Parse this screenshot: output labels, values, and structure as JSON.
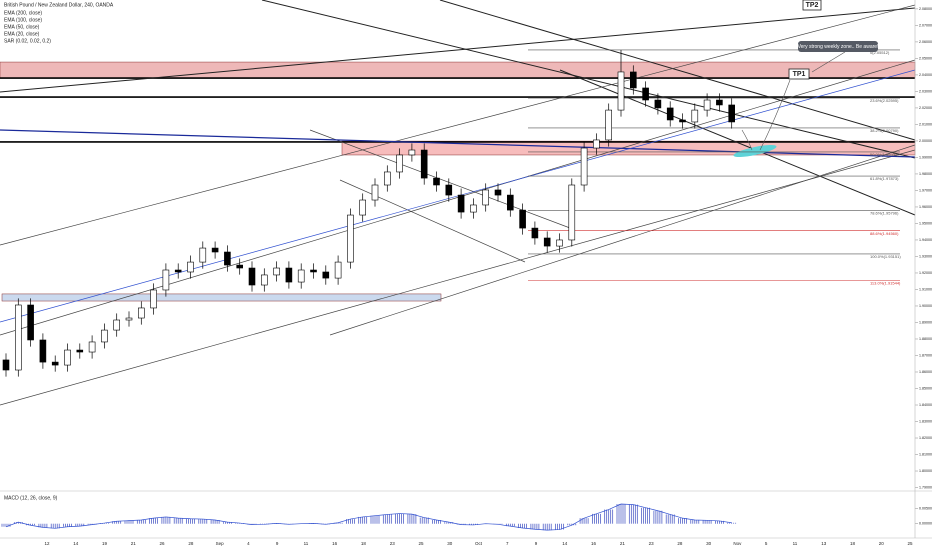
{
  "chart_data": {
    "type": "candlestick",
    "title": "British Pound / New Zealand Dollar, 240, OANDA",
    "indicators": [
      "EMA (200, close)",
      "EMA (100, close)",
      "EMA (50, close)",
      "EMA (20, close)",
      "SAR (0.02, 0.02, 0.2)"
    ],
    "categories": [
      "12",
      "14",
      "19",
      "21",
      "26",
      "28",
      "Sep",
      "4",
      "9",
      "11",
      "16",
      "18",
      "23",
      "25",
      "30",
      "Oct",
      "7",
      "9",
      "14",
      "16",
      "21",
      "23",
      "28",
      "30",
      "Nov",
      "5",
      "11",
      "13",
      "18",
      "20",
      "25"
    ],
    "ohlc": [
      [
        1.8673,
        1.8713,
        1.8572,
        1.8612
      ],
      [
        1.8612,
        1.9046,
        1.8572,
        1.9006
      ],
      [
        1.9006,
        1.9046,
        1.8754,
        1.8794
      ],
      [
        1.8794,
        1.8834,
        1.862,
        1.866
      ],
      [
        1.866,
        1.87,
        1.8602,
        1.8642
      ],
      [
        1.8642,
        1.8773,
        1.8602,
        1.8733
      ],
      [
        1.8733,
        1.8773,
        1.8681,
        1.8721
      ],
      [
        1.8721,
        1.8822,
        1.8681,
        1.8782
      ],
      [
        1.8782,
        1.8894,
        1.8742,
        1.8854
      ],
      [
        1.8854,
        1.8955,
        1.8814,
        1.8915
      ],
      [
        1.8915,
        1.8967,
        1.8875,
        1.8927
      ],
      [
        1.8927,
        1.9028,
        1.8887,
        1.8988
      ],
      [
        1.8988,
        1.9137,
        1.8948,
        1.9097
      ],
      [
        1.9097,
        1.9258,
        1.9057,
        1.9218
      ],
      [
        1.9218,
        1.9258,
        1.9166,
        1.9206
      ],
      [
        1.9206,
        1.9306,
        1.9166,
        1.9266
      ],
      [
        1.9266,
        1.9391,
        1.9226,
        1.9351
      ],
      [
        1.9351,
        1.9391,
        1.9287,
        1.9327
      ],
      [
        1.9327,
        1.9367,
        1.9208,
        1.9248
      ],
      [
        1.9248,
        1.9288,
        1.919,
        1.923
      ],
      [
        1.923,
        1.927,
        1.9087,
        1.9127
      ],
      [
        1.9127,
        1.9228,
        1.9087,
        1.9188
      ],
      [
        1.9188,
        1.927,
        1.9148,
        1.923
      ],
      [
        1.923,
        1.927,
        1.9105,
        1.9145
      ],
      [
        1.9145,
        1.9258,
        1.9105,
        1.9218
      ],
      [
        1.9218,
        1.9258,
        1.9166,
        1.9206
      ],
      [
        1.9206,
        1.9246,
        1.9129,
        1.9169
      ],
      [
        1.9169,
        1.9306,
        1.9129,
        1.9266
      ],
      [
        1.9266,
        1.9591,
        1.9226,
        1.9551
      ],
      [
        1.9551,
        1.9682,
        1.9511,
        1.9642
      ],
      [
        1.9642,
        1.9773,
        1.9602,
        1.9733
      ],
      [
        1.9733,
        1.9852,
        1.9693,
        1.9812
      ],
      [
        1.9812,
        1.9955,
        1.9772,
        1.9915
      ],
      [
        1.9915,
        1.9985,
        1.9875,
        1.9945
      ],
      [
        1.9945,
        1.9985,
        1.9735,
        1.9775
      ],
      [
        1.9775,
        1.9815,
        1.9693,
        1.9733
      ],
      [
        1.9733,
        1.9773,
        1.9632,
        1.9672
      ],
      [
        1.9672,
        1.9712,
        1.9529,
        1.9569
      ],
      [
        1.9569,
        1.9652,
        1.9529,
        1.9612
      ],
      [
        1.9612,
        1.9743,
        1.9572,
        1.9703
      ],
      [
        1.9703,
        1.9743,
        1.9632,
        1.9672
      ],
      [
        1.9672,
        1.9712,
        1.9541,
        1.9581
      ],
      [
        1.9581,
        1.9621,
        1.9432,
        1.9472
      ],
      [
        1.9472,
        1.9512,
        1.9372,
        1.9412
      ],
      [
        1.9412,
        1.9452,
        1.9323,
        1.9363
      ],
      [
        1.9363,
        1.944,
        1.9323,
        1.94
      ],
      [
        1.94,
        1.9773,
        1.936,
        1.9733
      ],
      [
        1.9733,
        1.9997,
        1.9693,
        1.9957
      ],
      [
        1.9957,
        2.0046,
        1.9917,
        2.0006
      ],
      [
        2.0006,
        2.0227,
        1.9966,
        2.0187
      ],
      [
        2.0187,
        2.0551,
        2.0147,
        2.0418
      ],
      [
        2.0418,
        2.0458,
        2.0281,
        2.0321
      ],
      [
        2.0321,
        2.0361,
        2.0208,
        2.0248
      ],
      [
        2.0248,
        2.0288,
        2.016,
        2.02
      ],
      [
        2.02,
        2.024,
        2.0087,
        2.0127
      ],
      [
        2.0127,
        2.0167,
        2.0075,
        2.0115
      ],
      [
        2.0115,
        2.0227,
        2.0075,
        2.0187
      ],
      [
        2.0187,
        2.0288,
        2.0147,
        2.0248
      ],
      [
        2.0248,
        2.0288,
        2.0178,
        2.0218
      ],
      [
        2.0218,
        2.0258,
        2.0075,
        2.0115
      ]
    ],
    "up_color": "#ffffff",
    "down_color": "#000000",
    "ylim": [
      1.7885,
      2.0854
    ],
    "yticks": [
      {
        "value": 2.08,
        "label": "2.08000"
      },
      {
        "value": 2.07,
        "label": "2.07000"
      },
      {
        "value": 2.06,
        "label": "2.06000"
      },
      {
        "value": 2.05,
        "label": "2.05000"
      },
      {
        "value": 2.04,
        "label": "2.04000"
      },
      {
        "value": 2.03,
        "label": "2.03000"
      },
      {
        "value": 2.02,
        "label": "2.02000"
      },
      {
        "value": 2.01,
        "label": "2.01000"
      },
      {
        "value": 2.0,
        "label": "2.00000"
      },
      {
        "value": 1.99,
        "label": "1.99000"
      },
      {
        "value": 1.98,
        "label": "1.98000"
      },
      {
        "value": 1.97,
        "label": "1.97000"
      },
      {
        "value": 1.96,
        "label": "1.96000"
      },
      {
        "value": 1.95,
        "label": "1.95000"
      },
      {
        "value": 1.94,
        "label": "1.94000"
      },
      {
        "value": 1.93,
        "label": "1.93000"
      },
      {
        "value": 1.92,
        "label": "1.92000"
      },
      {
        "value": 1.91,
        "label": "1.91000"
      },
      {
        "value": 1.9,
        "label": "1.90000"
      },
      {
        "value": 1.89,
        "label": "1.89000"
      },
      {
        "value": 1.88,
        "label": "1.88000"
      },
      {
        "value": 1.87,
        "label": "1.87000"
      },
      {
        "value": 1.86,
        "label": "1.86000"
      },
      {
        "value": 1.85,
        "label": "1.85000"
      },
      {
        "value": 1.84,
        "label": "1.84000"
      },
      {
        "value": 1.83,
        "label": "1.83000"
      },
      {
        "value": 1.82,
        "label": "1.82000"
      },
      {
        "value": 1.81,
        "label": "1.81000"
      },
      {
        "value": 1.8,
        "label": "1.80000"
      },
      {
        "value": 1.79,
        "label": "1.79000"
      }
    ],
    "zones": [
      {
        "values": [
          2.0478,
          2.0381
        ],
        "color": "#e8a0a0"
      },
      {
        "values": [
          1.9999,
          1.9915
        ],
        "color": "#f4a6a6"
      },
      {
        "values": [
          1.9073,
          1.903
        ],
        "color": "#b8cce8"
      }
    ],
    "levels": [
      2.0381,
      2.0266,
      1.9994
    ],
    "fib": [
      {
        "value": 2.05512,
        "label": "0(2.05512)",
        "color": "#555555"
      },
      {
        "value": 2.02595,
        "label": "23.6%(2.02595)",
        "color": "#555555"
      },
      {
        "value": 2.0079,
        "label": "38.2%(2.00790)",
        "color": "#555555"
      },
      {
        "value": 1.99332,
        "label": "50.0%(1.99332)",
        "color": "#555555"
      },
      {
        "value": 1.97873,
        "label": "61.8%(1.97873)",
        "color": "#555555"
      },
      {
        "value": 1.95796,
        "label": "78.6%(1.95796)",
        "color": "#555555"
      },
      {
        "value": 1.9456,
        "label": "88.6%(1.94560)",
        "color": "#d03030"
      },
      {
        "value": 1.93151,
        "label": "100.0%(1.93151)",
        "color": "#555555"
      },
      {
        "value": 1.91544,
        "label": "113.0%(1.91544)",
        "color": "#d03030"
      }
    ],
    "annotations": [
      "TP2",
      "TP1",
      "Very strong weekly zone.. Be aware!"
    ],
    "macd": {
      "title": "MACD (12, 26, close, 9)",
      "color": "#3b4cc0",
      "values": [
        -0.001,
        0.0005,
        -0.0005,
        -0.0012,
        -0.0015,
        -0.001,
        -0.0008,
        -0.0003,
        0.0002,
        0.0008,
        0.001,
        0.0012,
        0.0018,
        0.0022,
        0.0018,
        0.0016,
        0.0015,
        0.0012,
        0.0005,
        0.0002,
        -0.0003,
        -0.0002,
        0.0001,
        -0.0002,
        0,
        0.0001,
        -0.0002,
        0.0003,
        0.0015,
        0.0022,
        0.0026,
        0.003,
        0.0033,
        0.0031,
        0.002,
        0.0012,
        0.0005,
        -0.0003,
        -0.0004,
        0,
        -0.0002,
        -0.0008,
        -0.0014,
        -0.0018,
        -0.0021,
        -0.0019,
        -0.0005,
        0.0018,
        0.0032,
        0.0046,
        0.0064,
        0.0062,
        0.0052,
        0.0042,
        0.003,
        0.0018,
        0.0012,
        0.0011,
        0.0009,
        0.0003
      ],
      "ylim": [
        -0.004,
        0.009
      ],
      "yticks": [
        {
          "value": 0.005,
          "label": "0.00500"
        },
        {
          "value": 0,
          "label": "0.00000"
        }
      ]
    }
  }
}
